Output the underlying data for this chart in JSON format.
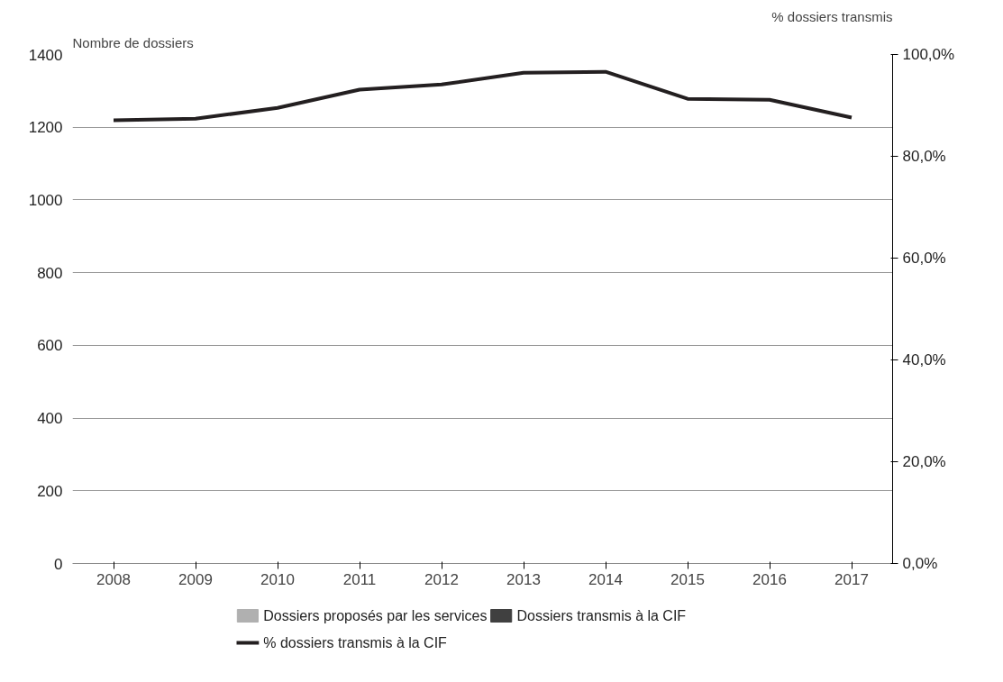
{
  "chart_data": {
    "type": "line",
    "ylabel": "Nombre de dossiers",
    "y2label": "% dossiers transmis",
    "categories": [
      "2008",
      "2009",
      "2010",
      "2011",
      "2012",
      "2013",
      "2014",
      "2015",
      "2016",
      "2017"
    ],
    "series": [
      {
        "name": "Dossiers proposés par les services",
        "type": "bar",
        "color": "#b0b0b0",
        "values": [
          null,
          null,
          null,
          null,
          null,
          null,
          null,
          null,
          null,
          null
        ]
      },
      {
        "name": "Dossiers transmis à la CIF",
        "type": "bar",
        "color": "#404040",
        "values": [
          null,
          null,
          null,
          null,
          null,
          null,
          null,
          null,
          null,
          null
        ]
      },
      {
        "name": "% dossiers transmis à la CIF",
        "axis": "y2",
        "color": "#231f20",
        "values": [
          87.1,
          87.4,
          89.5,
          93.1,
          94.1,
          96.4,
          96.6,
          91.3,
          91.1,
          87.6
        ]
      }
    ],
    "ylim": [
      0,
      1400
    ],
    "yticks": [
      0,
      200,
      400,
      600,
      800,
      1000,
      1200,
      1400
    ],
    "y2lim": [
      0,
      100
    ],
    "y2ticks": [
      {
        "value": 0,
        "label": "0,0%"
      },
      {
        "value": 20,
        "label": "20,0%"
      },
      {
        "value": 40,
        "label": "40,0%"
      },
      {
        "value": 60,
        "label": "60,0%"
      },
      {
        "value": 80,
        "label": "80,0%"
      },
      {
        "value": 100,
        "label": "100,0%"
      }
    ],
    "grid": "y",
    "legend": "bottom",
    "marker": "none",
    "line_style": "solid"
  }
}
